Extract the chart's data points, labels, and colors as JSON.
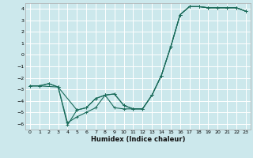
{
  "xlabel": "Humidex (Indice chaleur)",
  "bg_color": "#cce8ec",
  "grid_color": "#ffffff",
  "line_color": "#1a6b5a",
  "xlim": [
    -0.5,
    23.5
  ],
  "ylim": [
    -6.5,
    4.5
  ],
  "xticks": [
    0,
    1,
    2,
    3,
    4,
    5,
    6,
    7,
    8,
    9,
    10,
    11,
    12,
    13,
    14,
    15,
    16,
    17,
    18,
    19,
    20,
    21,
    22,
    23
  ],
  "yticks": [
    -6,
    -5,
    -4,
    -3,
    -2,
    -1,
    0,
    1,
    2,
    3,
    4
  ],
  "line1_x": [
    0,
    1,
    2,
    3,
    4,
    5,
    6,
    7,
    8,
    9,
    10,
    11,
    12,
    13,
    14,
    15,
    16,
    17,
    18,
    19,
    20,
    21,
    22,
    23
  ],
  "line1_y": [
    -2.7,
    -2.7,
    -2.5,
    -2.8,
    -6.1,
    -4.8,
    -4.6,
    -3.8,
    -3.5,
    -3.4,
    -4.4,
    -4.7,
    -4.7,
    -3.5,
    -1.8,
    0.7,
    3.5,
    4.2,
    4.2,
    4.1,
    4.1,
    4.1,
    4.1,
    3.8
  ],
  "line2_x": [
    0,
    1,
    2,
    3,
    5,
    6,
    7,
    8,
    9,
    10,
    11,
    12,
    13,
    14,
    15,
    16,
    17,
    18,
    19,
    20,
    21,
    22,
    23
  ],
  "line2_y": [
    -2.7,
    -2.7,
    -2.5,
    -2.8,
    -4.8,
    -4.6,
    -3.8,
    -3.5,
    -3.4,
    -4.4,
    -4.7,
    -4.7,
    -3.5,
    -1.8,
    0.7,
    3.5,
    4.2,
    4.2,
    4.1,
    4.1,
    4.1,
    4.1,
    3.8
  ],
  "line3_x": [
    0,
    1,
    3,
    4,
    5,
    6,
    7,
    8,
    9,
    10,
    11,
    12,
    13,
    14,
    15,
    16,
    17,
    18,
    19,
    20,
    21,
    22,
    23
  ],
  "line3_y": [
    -2.7,
    -2.7,
    -2.8,
    -5.9,
    -5.4,
    -5.0,
    -4.6,
    -3.5,
    -4.6,
    -4.7,
    -4.7,
    -4.7,
    -3.5,
    -1.8,
    0.7,
    3.5,
    4.2,
    4.2,
    4.1,
    4.1,
    4.1,
    4.1,
    3.8
  ]
}
